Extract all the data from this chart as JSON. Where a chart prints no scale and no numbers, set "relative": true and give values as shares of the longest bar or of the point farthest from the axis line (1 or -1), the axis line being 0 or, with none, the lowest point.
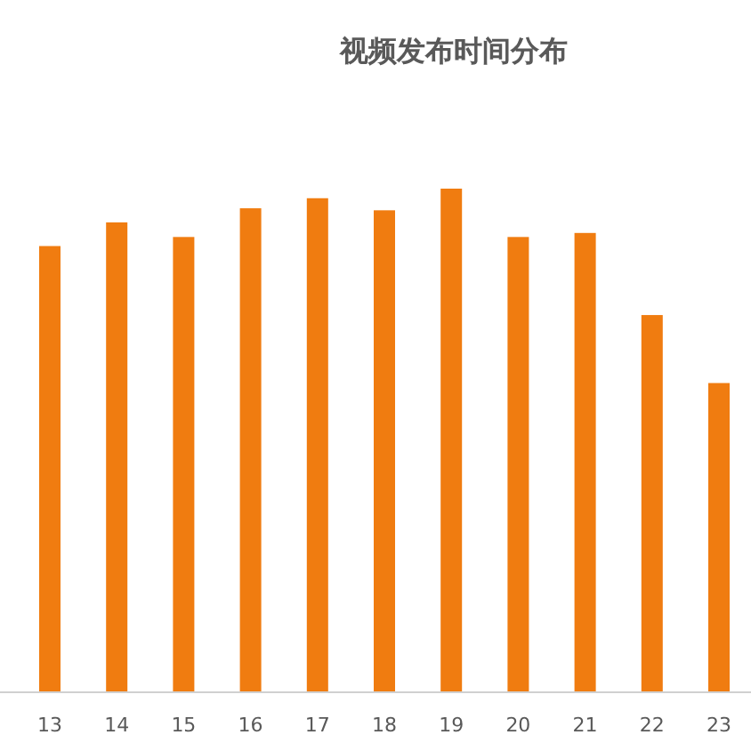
{
  "chart_data": {
    "type": "bar",
    "title": "视频发布时间分布",
    "relative": true,
    "color": "#f07c10",
    "categories": [
      "13",
      "14",
      "15",
      "16",
      "17",
      "18",
      "19",
      "20",
      "21",
      "22",
      "23"
    ],
    "values": [
      0.886,
      0.933,
      0.904,
      0.961,
      0.981,
      0.957,
      1,
      0.904,
      0.912,
      0.749,
      0.614
    ]
  }
}
